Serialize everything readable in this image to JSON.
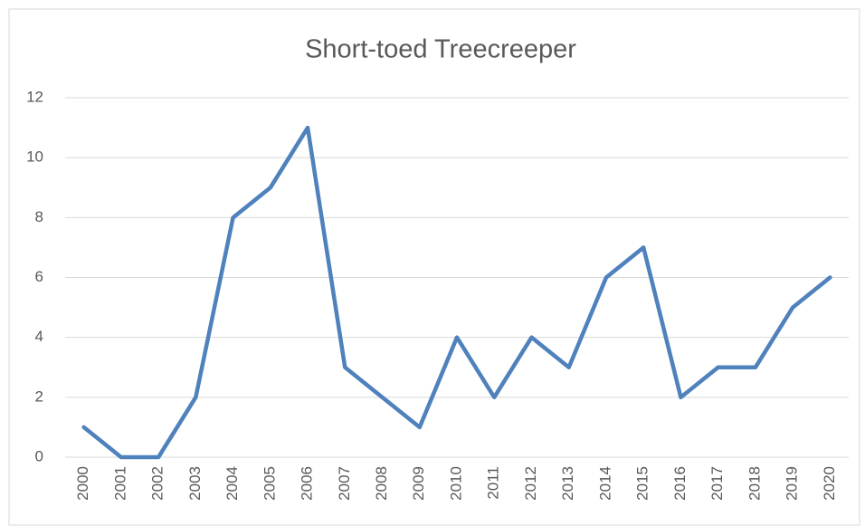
{
  "chart_data": {
    "type": "line",
    "title": "Short-toed Treecreeper",
    "categories": [
      "2000",
      "2001",
      "2002",
      "2003",
      "2004",
      "2005",
      "2006",
      "2007",
      "2008",
      "2009",
      "2010",
      "2011",
      "2012",
      "2013",
      "2014",
      "2015",
      "2016",
      "2017",
      "2018",
      "2019",
      "2020"
    ],
    "series": [
      {
        "color": "#4f81bd",
        "values": [
          1,
          0,
          0,
          2,
          8,
          9,
          11,
          3,
          2,
          1,
          4,
          2,
          4,
          3,
          6,
          7,
          2,
          3,
          3,
          5,
          6
        ]
      }
    ],
    "ylim": [
      0,
      12
    ],
    "yticks": [
      0,
      2,
      4,
      6,
      8,
      10,
      12
    ],
    "grid": true
  }
}
